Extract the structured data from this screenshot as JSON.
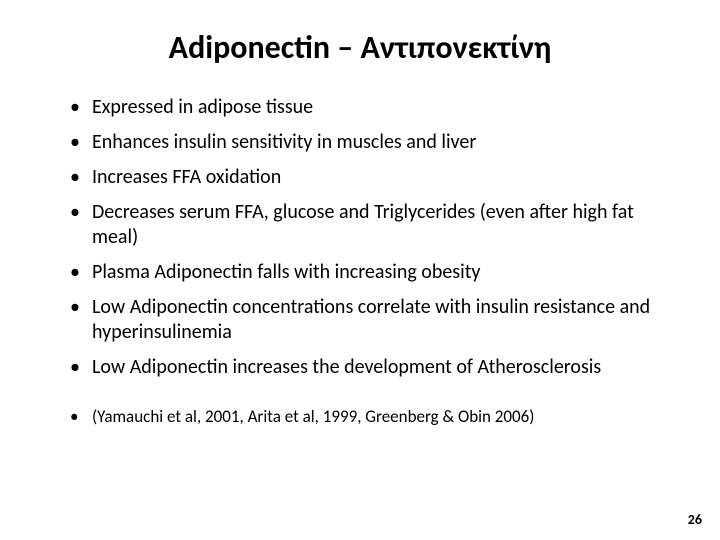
{
  "title": {
    "text": "Adiponectin – Αντιπονεκτίνη",
    "fontsize": 32,
    "color": "#000000"
  },
  "bullets": {
    "fontsize": 20,
    "line_height": 1.25,
    "color": "#000000",
    "items": [
      "Expressed in adipose tissue",
      "Enhances insulin sensitivity in muscles and liver",
      "Increases FFA oxidation",
      "Decreases serum FFA, glucose and Triglycerides (even after high fat meal)",
      "Plasma Adiponectin falls with increasing obesity",
      "Low Adiponectin concentrations correlate with insulin resistance and hyperinsulinemia",
      "Low Adiponectin increases the development of Atherosclerosis"
    ]
  },
  "citation": {
    "text": "(Yamauchi et al, 2001, Arita et al, 1999, Greenberg & Obin 2006)",
    "fontsize": 17
  },
  "page_number": {
    "text": "26",
    "fontsize": 14
  },
  "background_color": "#ffffff"
}
